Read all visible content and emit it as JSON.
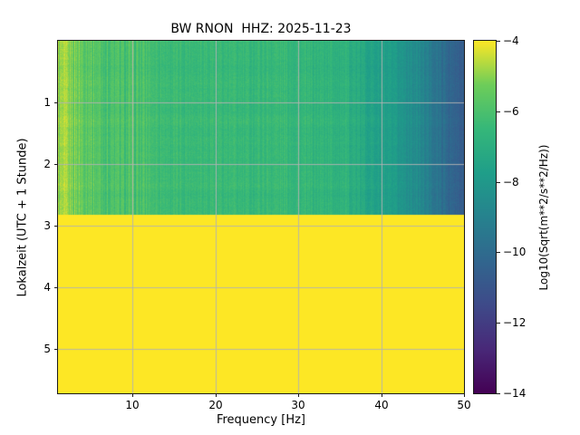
{
  "chart_data": {
    "type": "heatmap",
    "title": "BW RNON  HHZ: 2025-11-23",
    "xlabel": "Frequency [Hz]",
    "ylabel": "Lokalzeit (UTC + 1 Stunde)",
    "xlim": [
      1,
      50
    ],
    "ylim_time": [
      0,
      5.72
    ],
    "time_axis_direction": "down",
    "grid": true,
    "x_ticks": [
      10,
      20,
      30,
      40,
      50
    ],
    "x_tick_labels": [
      "10",
      "20",
      "30",
      "40",
      "50"
    ],
    "y_ticks": [
      1,
      2,
      3,
      4,
      5
    ],
    "y_tick_labels": [
      "1",
      "2",
      "3",
      "4",
      "5"
    ],
    "colorbar": {
      "label": "Log10(Sqrt(m**2/s**2/Hz))",
      "vmin": -14,
      "vmax": -4,
      "ticks": [
        -4,
        -6,
        -8,
        -10,
        -12,
        -14
      ],
      "tick_labels": [
        "−4",
        "−6",
        "−8",
        "−10",
        "−12",
        "−14"
      ],
      "colormap": "viridis",
      "colormap_stops": [
        "#440154",
        "#482878",
        "#3e4a89",
        "#31668e",
        "#26828e",
        "#1f9e89",
        "#35b779",
        "#6dcd59",
        "#fde725"
      ]
    },
    "spectrogram": {
      "time_boundary": 2.82,
      "upper_region": {
        "description": "recorded ambient-noise spectrogram, Log10 amplitude vs frequency (approx. values read from colors)",
        "freq_hz": [
          1,
          2,
          3,
          5,
          7,
          10,
          15,
          20,
          25,
          30,
          33,
          36,
          40,
          44,
          47,
          50
        ],
        "log10_value": [
          -5.0,
          -5.1,
          -5.3,
          -5.6,
          -5.9,
          -6.1,
          -6.3,
          -6.4,
          -6.45,
          -6.5,
          -6.6,
          -6.9,
          -7.6,
          -8.5,
          -9.6,
          -10.8
        ]
      },
      "lower_region": {
        "description": "uniform saturated block (no data / clipped at colorbar maximum)",
        "log10_value": -4
      },
      "noise_col_amp_low_freq": 0.55,
      "noise_col_amp_high_freq": 0.3,
      "noise_pixel_amp": 0.22,
      "grid_color": "#b2b2b2"
    }
  }
}
